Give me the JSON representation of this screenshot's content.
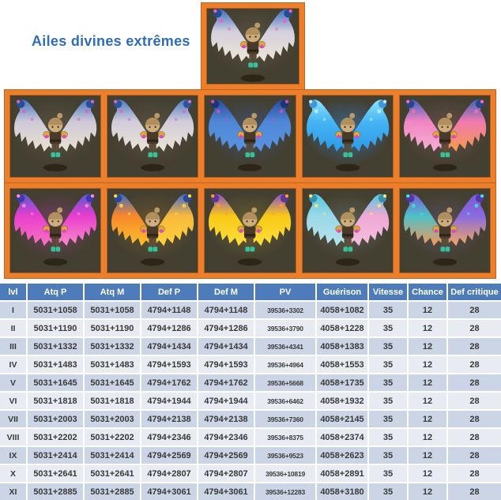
{
  "page": {
    "title": "Ailes divines extrêmes"
  },
  "colors": {
    "frame_orange": "#ec7f2b",
    "frame_orange_dark": "#c4611a",
    "cell_background": "#433f31",
    "header_blue": "#4e7cba",
    "row_odd": "#ccd5e5",
    "row_even": "#e9ebf2",
    "title_blue": "#2e6db8"
  },
  "gallery": {
    "top": {
      "name": "wings-white-blue-dragon",
      "tip": "#3a6cc4",
      "tip_dark": "#27498e",
      "left_mid": "#d4cfdc",
      "left_main": "#ece6d8",
      "right_mid": "#d4cfdc",
      "right_main": "#ece6d8",
      "accent": "#e265c5",
      "glow": "#6a6352"
    },
    "row1": [
      {
        "name": "wings-white-cream",
        "tip": "#4677c2",
        "tip_dark": "#2b4e96",
        "left_mid": "#cfc9d8",
        "left_main": "#e8e2d2",
        "right_mid": "#cfc9d8",
        "right_main": "#e8e2d2",
        "accent": "#d664c4",
        "glow": "#6a6352"
      },
      {
        "name": "wings-white-blue",
        "tip": "#4d7fc6",
        "tip_dark": "#2e549c",
        "left_mid": "#d2ccda",
        "left_main": "#eae4d6",
        "right_mid": "#d2ccda",
        "right_main": "#eae4d6",
        "accent": "#cf6ecf",
        "glow": "#6a6352"
      },
      {
        "name": "wings-blue",
        "tip": "#2a4a9a",
        "tip_dark": "#1d3570",
        "left_mid": "#4e87d6",
        "left_main": "#5b93e0",
        "right_mid": "#4e87d6",
        "right_main": "#5b93e0",
        "accent": "#cc4fc4",
        "glow": "#3f5f9a"
      },
      {
        "name": "wings-cyan-glow",
        "tip": "#8fe4fc",
        "tip_dark": "#3f96d8",
        "left_mid": "#46b4f4",
        "left_main": "#2f9ae8",
        "right_mid": "#46b4f4",
        "right_main": "#2f9ae8",
        "accent": "#c2f0ff",
        "glow": "#2f8ae0"
      },
      {
        "name": "wings-pink-orange",
        "tip": "#3f64b8",
        "tip_dark": "#2a4488",
        "left_mid": "#f285c2",
        "left_main": "#f5b0d6",
        "right_mid": "#f07ab0",
        "right_main": "#f59a4a",
        "accent": "#ff67c1",
        "glow": "#8a5a62"
      }
    ],
    "row2": [
      {
        "name": "wings-magenta",
        "tip": "#5a58d8",
        "tip_dark": "#3c3aa8",
        "left_mid": "#e83ecc",
        "left_main": "#f773c0",
        "right_mid": "#e83ecc",
        "right_main": "#fa8ccc",
        "accent": "#ff8ad8",
        "glow": "#a03a90"
      },
      {
        "name": "wings-fire-orange",
        "tip": "#3f6cc8",
        "tip_dark": "#2a4a96",
        "left_mid": "#f8872a",
        "left_main": "#fcc12c",
        "right_mid": "#f9b93c",
        "right_main": "#fcd23c",
        "accent": "#ffd84a",
        "glow": "#8a6a2a"
      },
      {
        "name": "wings-golden-yellow",
        "tip": "#8a52c8",
        "tip_dark": "#5f3596",
        "left_mid": "#f9c916",
        "left_main": "#fcdf3c",
        "right_mid": "#f9c916",
        "right_main": "#fcdf3c",
        "accent": "#ff9a3c",
        "glow": "#8a7a2a"
      },
      {
        "name": "wings-pastel-multicolor",
        "tip": "#52c8e0",
        "tip_dark": "#3492ac",
        "left_mid": "#9ad8e8",
        "left_main": "#b7e2ea",
        "right_mid": "#f0a8d4",
        "right_main": "#f4bede",
        "accent": "#f9e37a",
        "glow": "#6a7a72"
      },
      {
        "name": "wings-iridescent-rainbow",
        "tip": "#7a5ad8",
        "tip_dark": "#5038a8",
        "left_mid": "#4ec0c8",
        "left_main": "#f49858",
        "right_mid": "#8a6ae0",
        "right_main": "#f4a860",
        "accent": "#49e0d0",
        "glow": "#6a5a7a"
      }
    ]
  },
  "table": {
    "headers": [
      "lvl",
      "Atq P",
      "Atq M",
      "Def P",
      "Def M",
      "PV",
      "Guérison",
      "Vitesse",
      "Chance",
      "Def critique"
    ],
    "rows": [
      [
        "I",
        "5031+1058",
        "5031+1058",
        "4794+1148",
        "4794+1148",
        "39536+3302",
        "4058+1082",
        "35",
        "12",
        "28"
      ],
      [
        "II",
        "5031+1190",
        "5031+1190",
        "4794+1286",
        "4794+1286",
        "39536+3790",
        "4058+1228",
        "35",
        "12",
        "28"
      ],
      [
        "III",
        "5031+1332",
        "5031+1332",
        "4794+1434",
        "4794+1434",
        "39536+4341",
        "4058+1383",
        "35",
        "12",
        "28"
      ],
      [
        "IV",
        "5031+1483",
        "5031+1483",
        "4794+1593",
        "4794+1593",
        "39536+4964",
        "4058+1553",
        "35",
        "12",
        "28"
      ],
      [
        "V",
        "5031+1645",
        "5031+1645",
        "4794+1762",
        "4794+1762",
        "39536+5668",
        "4058+1735",
        "35",
        "12",
        "28"
      ],
      [
        "VI",
        "5031+1818",
        "5031+1818",
        "4794+1944",
        "4794+1944",
        "39536+6462",
        "4058+1932",
        "35",
        "12",
        "28"
      ],
      [
        "VII",
        "5031+2003",
        "5031+2003",
        "4794+2138",
        "4794+2138",
        "39536+7360",
        "4058+2145",
        "35",
        "12",
        "28"
      ],
      [
        "VIII",
        "5031+2202",
        "5031+2202",
        "4794+2346",
        "4794+2346",
        "39536+8375",
        "4058+2374",
        "35",
        "12",
        "28"
      ],
      [
        "IX",
        "5031+2414",
        "5031+2414",
        "4794+2569",
        "4794+2569",
        "39536+9523",
        "4058+2623",
        "35",
        "12",
        "28"
      ],
      [
        "X",
        "5031+2641",
        "5031+2641",
        "4794+2807",
        "4794+2807",
        "39536+10819",
        "4058+2891",
        "35",
        "12",
        "28"
      ],
      [
        "XI",
        "5031+2885",
        "5031+2885",
        "4794+3061",
        "4794+3061",
        "39536+12283",
        "4058+3180",
        "35",
        "12",
        "28"
      ]
    ]
  }
}
